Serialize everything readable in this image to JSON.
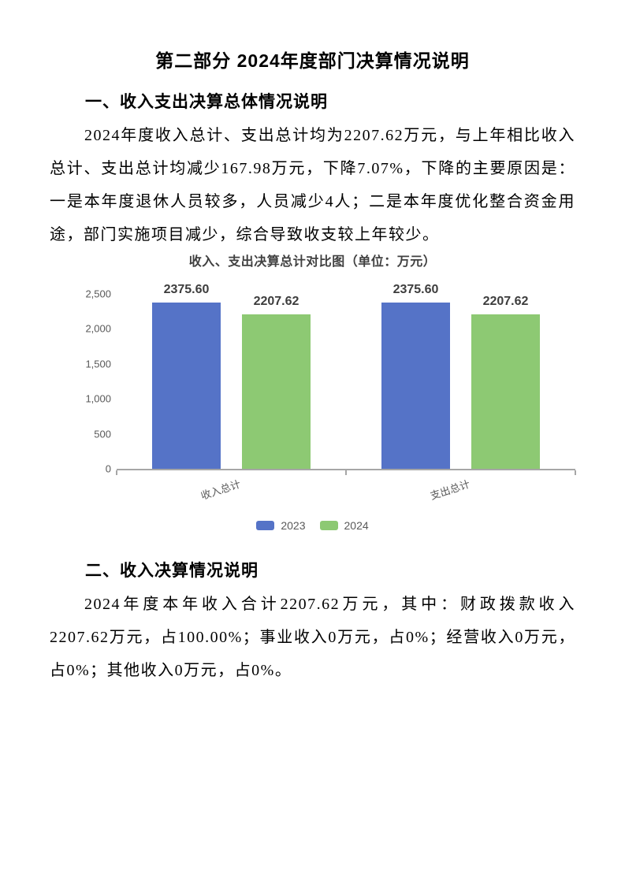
{
  "page": {
    "title": "第二部分 2024年度部门决算情况说明"
  },
  "section1": {
    "heading": "一、收入支出决算总体情况说明",
    "paragraph": "2024年度收入总计、支出总计均为2207.62万元，与上年相比收入总计、支出总计均减少167.98万元，下降7.07%，下降的主要原因是：一是本年度退休人员较多，人员减少4人；二是本年度优化整合资金用途，部门实施项目减少，综合导致收支较上年较少。"
  },
  "chart_data": {
    "type": "bar",
    "title": "收入、支出决算总计对比图（单位：万元）",
    "categories": [
      "收入总计",
      "支出总计"
    ],
    "series": [
      {
        "name": "2023",
        "color": "#5573C7",
        "values": [
          2375.6,
          2375.6
        ]
      },
      {
        "name": "2024",
        "color": "#8DC973",
        "values": [
          2207.62,
          2207.62
        ]
      }
    ],
    "ylim": [
      0,
      2500
    ],
    "ytick_labels": [
      "2,500",
      "2,000",
      "1,500",
      "1,000",
      "500",
      "0"
    ],
    "value_labels": [
      [
        "2375.60",
        "2207.62"
      ],
      [
        "2375.60",
        "2207.62"
      ]
    ],
    "legend_position": "bottom",
    "grid": false,
    "axis_color": "#A6A6A6"
  },
  "section2": {
    "heading": "二、收入决算情况说明",
    "paragraph": "2024年度本年收入合计2207.62万元，其中：财政拨款收入2207.62万元，占100.00%；事业收入0万元，占0%；经营收入0万元，占0%；其他收入0万元，占0%。"
  }
}
